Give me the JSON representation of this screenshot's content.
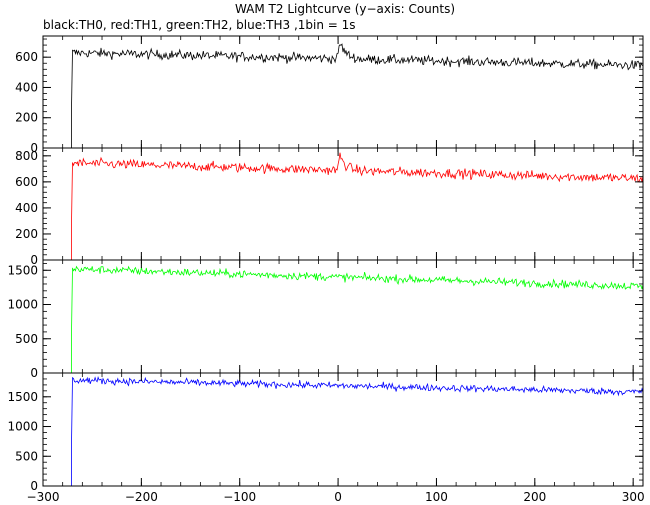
{
  "chart_data": {
    "type": "line",
    "title": "WAM T2 Lightcurve (y−axis: Counts)",
    "subtitle": "black:TH0, red:TH1, green:TH2, blue:TH3 ,1bin = 1s",
    "xlim": [
      -300,
      310
    ],
    "x_ticks": [
      -300,
      -200,
      -100,
      0,
      100,
      200,
      300
    ],
    "x_tick_labels": [
      "−300",
      "−200",
      "−100",
      "0",
      "100",
      "200",
      "300"
    ],
    "step_time": -271,
    "panels": [
      {
        "name": "TH0",
        "color": "#000000",
        "ylim": [
          0,
          740
        ],
        "y_ticks": [
          0,
          200,
          400,
          600
        ],
        "y_tick_labels": [
          "0",
          "200",
          "400",
          "600"
        ],
        "baseline": 0,
        "spike_value": 260,
        "level_start": 630,
        "level_end": 545,
        "noise": 30,
        "burst_peak": 715,
        "burst_time": 2
      },
      {
        "name": "TH1",
        "color": "#ff0000",
        "ylim": [
          0,
          860
        ],
        "y_ticks": [
          0,
          200,
          400,
          600,
          800
        ],
        "y_tick_labels": [
          "0",
          "200",
          "400",
          "600",
          "800"
        ],
        "baseline": 0,
        "spike_value": 280,
        "level_start": 745,
        "level_end": 625,
        "noise": 35,
        "burst_peak": 820,
        "burst_time": 2
      },
      {
        "name": "TH2",
        "color": "#00ff00",
        "ylim": [
          0,
          1650
        ],
        "y_ticks": [
          0,
          500,
          1000,
          1500
        ],
        "y_tick_labels": [
          "0",
          "500",
          "1000",
          "1500"
        ],
        "baseline": 0,
        "spike_value": 580,
        "level_start": 1520,
        "level_end": 1265,
        "noise": 55
      },
      {
        "name": "TH3",
        "color": "#0000ff",
        "ylim": [
          0,
          1900
        ],
        "y_ticks": [
          0,
          500,
          1000,
          1500
        ],
        "y_tick_labels": [
          "0",
          "500",
          "1000",
          "1500"
        ],
        "baseline": 0,
        "spike_value": 700,
        "level_start": 1780,
        "level_end": 1580,
        "noise": 55
      }
    ]
  }
}
